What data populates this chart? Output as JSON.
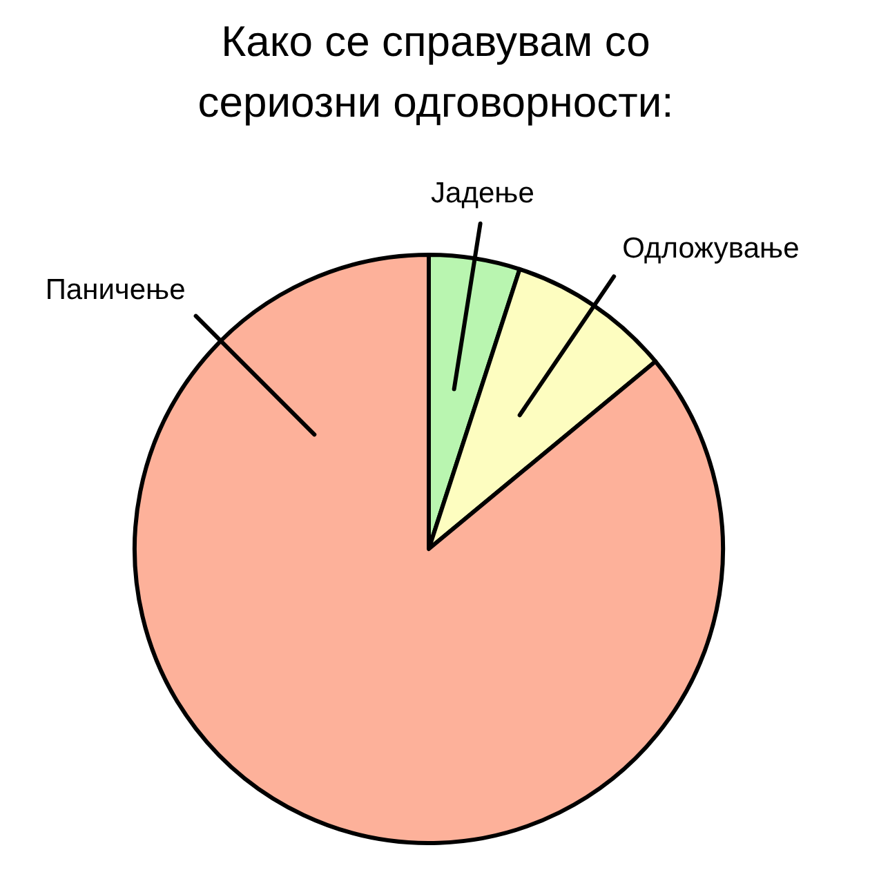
{
  "chart_data": {
    "type": "pie",
    "title": "Како се справувам со\nсериозни одговорности:",
    "categories": [
      "Јадење",
      "Одложување",
      "Паничење"
    ],
    "values": [
      5,
      9,
      86
    ],
    "colors": [
      "#b9f5b0",
      "#fdfdc0",
      "#fdb19a"
    ]
  }
}
